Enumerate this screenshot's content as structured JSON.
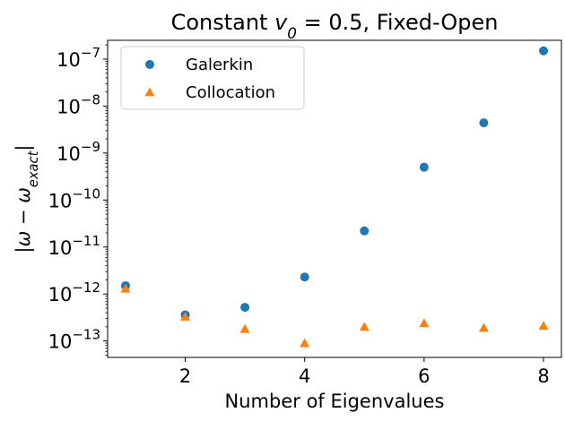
{
  "chart_data": {
    "type": "scatter",
    "title": "Constant $v_0 = 0.5$, Fixed-Open",
    "xlabel": "Number of Eigenvalues",
    "ylabel": "$|\\omega - \\omega_{exact}|$",
    "yscale": "log",
    "xlim": [
      0.7,
      8.3
    ],
    "ylim_exp": [
      -13.35,
      -6.6
    ],
    "x_ticks": [
      2,
      4,
      6,
      8
    ],
    "y_tick_exponents": [
      -13,
      -12,
      -11,
      -10,
      -9,
      -8,
      -7
    ],
    "grid": false,
    "legend_position": "upper left",
    "series": [
      {
        "name": "Galerkin",
        "marker": "circle",
        "color": "#1f77b4",
        "x": [
          1,
          2,
          3,
          4,
          5,
          6,
          7,
          8
        ],
        "y": [
          1.5e-12,
          3.6e-13,
          5.2e-13,
          2.3e-12,
          2.2e-11,
          5e-10,
          4.4e-09,
          1.5e-07
        ]
      },
      {
        "name": "Collocation",
        "marker": "triangle",
        "color": "#ff7f0e",
        "x": [
          1,
          2,
          3,
          4,
          5,
          6,
          7,
          8
        ],
        "y": [
          1.3e-12,
          3.3e-13,
          1.8e-13,
          9e-14,
          2e-13,
          2.4e-13,
          1.9e-13,
          2.1e-13
        ]
      }
    ]
  }
}
